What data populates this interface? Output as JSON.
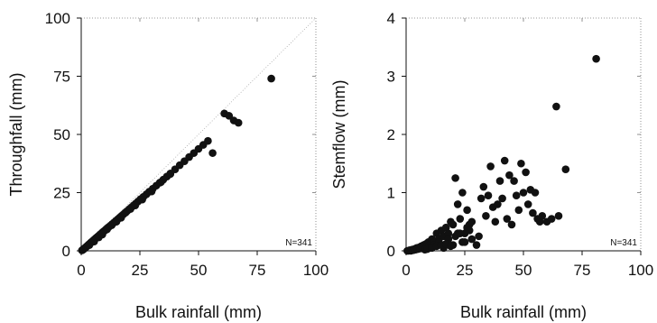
{
  "chart_data": [
    {
      "type": "scatter",
      "xlabel": "Bulk rainfall (mm)",
      "ylabel": "Throughfall (mm)",
      "xlim": [
        0,
        100
      ],
      "ylim": [
        0,
        100
      ],
      "xticks": [
        0,
        25,
        50,
        75,
        100
      ],
      "yticks": [
        0,
        25,
        50,
        75,
        100
      ],
      "xtick_labels": [
        "0",
        "25",
        "50",
        "75",
        "100"
      ],
      "ytick_labels": [
        "0",
        "25",
        "50",
        "75",
        "100"
      ],
      "annotation": "N=341",
      "reference_line": "1:1",
      "series": [
        {
          "x": [
            0.3,
            0.6,
            0.8,
            1,
            1.2,
            1.5,
            1.7,
            2,
            2.2,
            2.5,
            2.8,
            3,
            3.3,
            3.6,
            4,
            4.3,
            4.7,
            5,
            5.4,
            5.8,
            6.2,
            6.6,
            7,
            7.5,
            8,
            8.5,
            9,
            9.5,
            10,
            10.6,
            11.2,
            11.8,
            12.5,
            13.2,
            14,
            14.8,
            15.6,
            16.4,
            17.2,
            18,
            18.8,
            19.6,
            20.5,
            21.4,
            22.3,
            23.2,
            24.2,
            25.3,
            26.5,
            27.8,
            29,
            30.5,
            32,
            33.5,
            35,
            36.5,
            38,
            40,
            42,
            44,
            46,
            48,
            50,
            52,
            54,
            56,
            61,
            63,
            65,
            67,
            81,
            3.5,
            5.5,
            7.5,
            9,
            11,
            13,
            15,
            17,
            19,
            21,
            23,
            26,
            30,
            34,
            38
          ],
          "y": [
            0.2,
            0.4,
            0.5,
            0.7,
            0.9,
            1.1,
            1.3,
            1.6,
            1.8,
            2,
            2.3,
            2.5,
            2.8,
            3,
            3.4,
            3.7,
            4,
            4.3,
            4.7,
            5,
            5.4,
            5.7,
            6.1,
            6.5,
            7,
            7.4,
            7.9,
            8.3,
            8.7,
            9.3,
            9.8,
            10.3,
            10.9,
            11.5,
            12.2,
            12.9,
            13.6,
            14.3,
            15,
            15.7,
            16.4,
            17.1,
            17.9,
            18.7,
            19.5,
            20.3,
            21.2,
            22.2,
            23.2,
            24.3,
            25.4,
            26.7,
            28,
            29.3,
            30.6,
            31.9,
            33.2,
            35,
            36.8,
            38.5,
            40.3,
            42,
            43.8,
            45.5,
            47.2,
            42,
            59,
            58,
            56,
            55,
            74,
            2.5,
            4,
            5.8,
            7,
            9.2,
            11,
            12.5,
            14.2,
            16.5,
            18,
            19.5,
            22,
            25.5,
            29.5,
            33
          ]
        }
      ]
    },
    {
      "type": "scatter",
      "xlabel": "Bulk rainfall (mm)",
      "ylabel": "Stemflow (mm)",
      "xlim": [
        0,
        100
      ],
      "ylim": [
        0,
        4
      ],
      "xticks": [
        0,
        25,
        50,
        75,
        100
      ],
      "yticks": [
        0,
        1,
        2,
        3,
        4
      ],
      "xtick_labels": [
        "0",
        "25",
        "50",
        "75",
        "100"
      ],
      "ytick_labels": [
        "0",
        "1",
        "2",
        "3",
        "4"
      ],
      "annotation": "N=341",
      "series": [
        {
          "x": [
            0.5,
            1,
            1.5,
            2,
            2.5,
            3,
            3.5,
            4,
            4.5,
            5,
            5.5,
            6,
            6.5,
            7,
            7.5,
            8,
            8.5,
            9,
            9.5,
            10,
            11,
            12,
            13,
            14,
            15,
            16,
            17,
            18,
            19,
            20,
            21,
            22,
            23,
            24,
            25,
            26,
            27,
            28,
            30,
            31,
            32,
            33,
            34,
            35,
            36,
            37,
            38,
            39,
            40,
            41,
            42,
            43,
            44,
            45,
            46,
            47,
            48,
            49,
            50,
            51,
            52,
            53,
            54,
            55,
            56,
            57,
            58,
            60,
            62,
            64,
            65,
            68,
            81,
            10,
            12,
            14,
            16,
            18,
            20,
            22,
            24,
            26,
            28,
            8,
            9,
            11,
            13,
            15,
            17,
            19,
            21,
            23,
            25,
            27
          ],
          "y": [
            0,
            0,
            0.01,
            0,
            0.02,
            0.01,
            0.03,
            0.02,
            0.05,
            0.03,
            0.06,
            0.04,
            0.08,
            0.05,
            0.1,
            0.07,
            0.12,
            0.09,
            0.15,
            0.1,
            0.2,
            0.15,
            0.3,
            0.2,
            0.35,
            0.25,
            0.4,
            0.3,
            0.5,
            0.45,
            1.25,
            0.8,
            0.55,
            1,
            0.3,
            0.7,
            0.45,
            0.5,
            0.1,
            0.25,
            0.9,
            1.1,
            0.6,
            0.95,
            1.45,
            0.75,
            0.5,
            0.8,
            1.2,
            0.9,
            1.55,
            0.55,
            1.3,
            0.45,
            1.2,
            0.95,
            0.7,
            1.5,
            1,
            1.35,
            0.8,
            1.05,
            0.65,
            1,
            0.55,
            0.5,
            0.6,
            0.5,
            0.55,
            2.48,
            0.6,
            1.4,
            3.3,
            0.05,
            0.1,
            0.15,
            0.05,
            0.2,
            0.1,
            0.3,
            0.15,
            0.4,
            0.2,
            0.02,
            0.03,
            0.05,
            0.08,
            0.1,
            0.12,
            0.08,
            0.25,
            0.3,
            0.15,
            0.35
          ]
        }
      ]
    }
  ]
}
